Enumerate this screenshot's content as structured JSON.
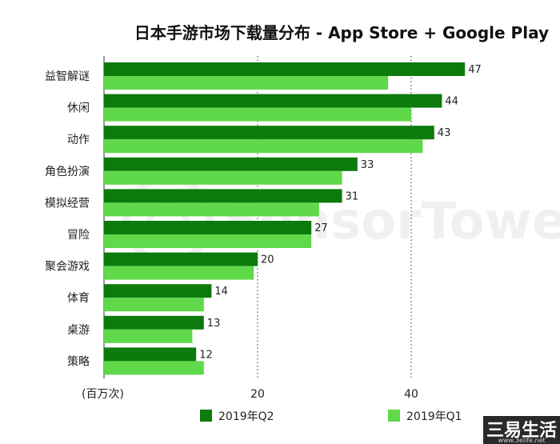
{
  "chart_data": {
    "type": "bar",
    "orientation": "horizontal",
    "title": "日本手游市场下载量分布 - App Store + Google Play",
    "unit_label": "(百万次)",
    "categories": [
      "益智解谜",
      "休闲",
      "动作",
      "角色扮演",
      "模拟经营",
      "冒险",
      "聚会游戏",
      "体育",
      "桌游",
      "策略"
    ],
    "series": [
      {
        "name": "2019年Q2",
        "color": "#0c7a0c",
        "values": [
          47,
          44,
          43,
          33,
          31,
          27,
          20,
          14,
          13,
          12
        ]
      },
      {
        "name": "2019年Q1",
        "color": "#5fd94a",
        "values": [
          37,
          40,
          41.5,
          31,
          28,
          27,
          19.5,
          13,
          11.5,
          13
        ]
      }
    ],
    "data_labels_series": "2019年Q2",
    "xticks": [
      20,
      40
    ],
    "xlim": [
      0,
      56
    ],
    "grid": "vertical dotted at ticks",
    "legend_position": "bottom"
  },
  "watermark": {
    "text": "SensorTower"
  },
  "corner_logo": {
    "text": "三易生活",
    "sub": "www.3elife.net"
  }
}
